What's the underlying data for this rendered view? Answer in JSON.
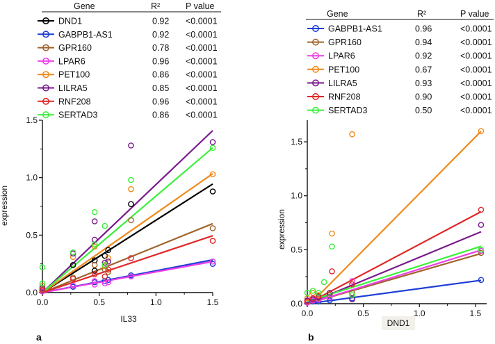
{
  "panels": [
    {
      "id": "a",
      "label": "a",
      "header": {
        "gene": "Gene",
        "r2": "R²",
        "pvalue": "P value"
      },
      "rows": [
        {
          "gene": "DND1",
          "r2": "0.92",
          "pvalue": "<0.0001",
          "color": "#000000"
        },
        {
          "gene": "GABPB1-AS1",
          "r2": "0.92",
          "pvalue": "<0.0001",
          "color": "#1f3fd6"
        },
        {
          "gene": "GPR160",
          "r2": "0.78",
          "pvalue": "<0.0001",
          "color": "#a0642d"
        },
        {
          "gene": "LPAR6",
          "r2": "0.96",
          "pvalue": "<0.0001",
          "color": "#ee3ee8"
        },
        {
          "gene": "PET100",
          "r2": "0.86",
          "pvalue": "<0.0001",
          "color": "#f08a1c"
        },
        {
          "gene": "LILRA5",
          "r2": "0.85",
          "pvalue": "<0.0001",
          "color": "#7a1a8c"
        },
        {
          "gene": "RNF208",
          "r2": "0.96",
          "pvalue": "<0.0001",
          "color": "#e02828"
        },
        {
          "gene": "SERTAD3",
          "r2": "0.86",
          "pvalue": "<0.0001",
          "color": "#3cf03c"
        }
      ]
    },
    {
      "id": "b",
      "label": "b",
      "header": {
        "gene": "Gene",
        "r2": "R²",
        "pvalue": "P value"
      },
      "rows": [
        {
          "gene": "GABPB1-AS1",
          "r2": "0.96",
          "pvalue": "<0.0001",
          "color": "#1f3fd6"
        },
        {
          "gene": "GPR160",
          "r2": "0.94",
          "pvalue": "<0.0001",
          "color": "#a0642d"
        },
        {
          "gene": "LPAR6",
          "r2": "0.92",
          "pvalue": "<0.0001",
          "color": "#ee3ee8"
        },
        {
          "gene": "PET100",
          "r2": "0.67",
          "pvalue": "<0.0001",
          "color": "#f08a1c"
        },
        {
          "gene": "LILRA5",
          "r2": "0.93",
          "pvalue": "<0.0001",
          "color": "#7a1a8c"
        },
        {
          "gene": "RNF208",
          "r2": "0.90",
          "pvalue": "<0.0001",
          "color": "#e02828"
        },
        {
          "gene": "SERTAD3",
          "r2": "0.50",
          "pvalue": "<0.0001",
          "color": "#3cf03c"
        }
      ]
    }
  ],
  "chart_data": [
    {
      "type": "scatter",
      "panel": "a",
      "xlabel": "IL33",
      "ylabel": "expression",
      "xlim": [
        0,
        1.5
      ],
      "ylim": [
        0,
        1.5
      ],
      "xticks": [
        "0.0",
        "0.5",
        "1.0",
        "1.5"
      ],
      "yticks": [
        "0.0",
        "0.5",
        "1.0",
        "1.5"
      ],
      "series": [
        {
          "name": "DND1",
          "slope": 0.63,
          "intercept": 0.0,
          "color": "#000000",
          "points": [
            [
              0,
              0.02
            ],
            [
              0.27,
              0.24
            ],
            [
              0.46,
              0.28
            ],
            [
              0.46,
              0.19
            ],
            [
              0.55,
              0.32
            ],
            [
              0.58,
              0.37
            ],
            [
              0.78,
              0.77
            ],
            [
              1.5,
              0.88
            ]
          ]
        },
        {
          "name": "GABPB1-AS1",
          "slope": 0.19,
          "intercept": 0.0,
          "color": "#1f3fd6",
          "points": [
            [
              0,
              0.01
            ],
            [
              0.27,
              0.05
            ],
            [
              0.46,
              0.09
            ],
            [
              0.55,
              0.1
            ],
            [
              0.58,
              0.11
            ],
            [
              0.78,
              0.15
            ],
            [
              1.5,
              0.25
            ]
          ]
        },
        {
          "name": "GPR160",
          "slope": 0.4,
          "intercept": 0.0,
          "color": "#a0642d",
          "points": [
            [
              0,
              0.03
            ],
            [
              0.27,
              0.13
            ],
            [
              0.46,
              0.24
            ],
            [
              0.55,
              0.2
            ],
            [
              0.58,
              0.18
            ],
            [
              0.78,
              0.63
            ],
            [
              1.5,
              0.56
            ]
          ]
        },
        {
          "name": "LPAR6",
          "slope": 0.18,
          "intercept": 0.0,
          "color": "#ee3ee8",
          "points": [
            [
              0,
              0.01
            ],
            [
              0.27,
              0.06
            ],
            [
              0.46,
              0.07
            ],
            [
              0.46,
              0.1
            ],
            [
              0.55,
              0.08
            ],
            [
              0.58,
              0.09
            ],
            [
              0.78,
              0.14
            ],
            [
              1.5,
              0.27
            ]
          ]
        },
        {
          "name": "PET100",
          "slope": 0.69,
          "intercept": 0.0,
          "color": "#f08a1c",
          "points": [
            [
              0,
              0.06
            ],
            [
              0.27,
              0.31
            ],
            [
              0.46,
              0.4
            ],
            [
              0.55,
              0.23
            ],
            [
              0.58,
              0.3
            ],
            [
              0.78,
              0.9
            ],
            [
              1.5,
              1.03
            ]
          ]
        },
        {
          "name": "LILRA5",
          "slope": 0.94,
          "intercept": 0.0,
          "color": "#7a1a8c",
          "points": [
            [
              0,
              0.04
            ],
            [
              0.27,
              0.34
            ],
            [
              0.46,
              0.62
            ],
            [
              0.46,
              0.46
            ],
            [
              0.55,
              0.26
            ],
            [
              0.58,
              0.27
            ],
            [
              0.78,
              1.28
            ],
            [
              1.5,
              1.31
            ]
          ]
        },
        {
          "name": "RNF208",
          "slope": 0.33,
          "intercept": 0.0,
          "color": "#e02828",
          "points": [
            [
              0,
              0.02
            ],
            [
              0.27,
              0.12
            ],
            [
              0.46,
              0.16
            ],
            [
              0.55,
              0.14
            ],
            [
              0.58,
              0.2
            ],
            [
              0.78,
              0.3
            ],
            [
              1.5,
              0.45
            ]
          ]
        },
        {
          "name": "SERTAD3",
          "slope": 0.84,
          "intercept": 0.0,
          "color": "#3cf03c",
          "points": [
            [
              0,
              0.22
            ],
            [
              0,
              0.08
            ],
            [
              0.27,
              0.35
            ],
            [
              0.46,
              0.7
            ],
            [
              0.46,
              0.42
            ],
            [
              0.55,
              0.24
            ],
            [
              0.55,
              0.58
            ],
            [
              0.78,
              0.98
            ],
            [
              1.5,
              1.26
            ]
          ]
        }
      ]
    },
    {
      "type": "scatter",
      "panel": "b",
      "xlabel": "DND1",
      "ylabel": "expression",
      "xlim": [
        0,
        1.6
      ],
      "ylim": [
        0,
        1.7
      ],
      "xticks": [
        "0.0",
        "0.5",
        "1.0",
        "1.5"
      ],
      "yticks": [
        "0.0",
        "0.5",
        "1.0",
        "1.5"
      ],
      "series": [
        {
          "name": "GABPB1-AS1",
          "slope": 0.14,
          "intercept": 0.0,
          "color": "#1f3fd6",
          "points": [
            [
              0,
              0.01
            ],
            [
              0.05,
              0.02
            ],
            [
              0.1,
              0.02
            ],
            [
              0.2,
              0.03
            ],
            [
              0.4,
              0.05
            ],
            [
              1.55,
              0.22
            ]
          ]
        },
        {
          "name": "GPR160",
          "slope": 0.3,
          "intercept": 0.0,
          "color": "#a0642d",
          "points": [
            [
              0,
              0.02
            ],
            [
              0.05,
              0.03
            ],
            [
              0.1,
              0.05
            ],
            [
              0.2,
              0.08
            ],
            [
              0.4,
              0.1
            ],
            [
              1.55,
              0.47
            ]
          ]
        },
        {
          "name": "LPAR6",
          "slope": 0.32,
          "intercept": 0.0,
          "color": "#ee3ee8",
          "points": [
            [
              0,
              0.01
            ],
            [
              0.05,
              0.03
            ],
            [
              0.1,
              0.04
            ],
            [
              0.2,
              0.06
            ],
            [
              0.4,
              0.21
            ],
            [
              1.55,
              0.49
            ]
          ]
        },
        {
          "name": "PET100",
          "slope": 1.05,
          "intercept": -0.03,
          "color": "#f08a1c",
          "points": [
            [
              0,
              0.05
            ],
            [
              0.05,
              0.1
            ],
            [
              0.1,
              0.08
            ],
            [
              0.22,
              0.65
            ],
            [
              0.4,
              1.57
            ],
            [
              1.55,
              1.6
            ]
          ]
        },
        {
          "name": "LILRA5",
          "slope": 0.43,
          "intercept": 0.0,
          "color": "#7a1a8c",
          "points": [
            [
              0,
              0.03
            ],
            [
              0.05,
              0.04
            ],
            [
              0.1,
              0.06
            ],
            [
              0.2,
              0.1
            ],
            [
              0.4,
              0.04
            ],
            [
              1.55,
              0.73
            ]
          ]
        },
        {
          "name": "RNF208",
          "slope": 0.55,
          "intercept": 0.0,
          "color": "#e02828",
          "points": [
            [
              0,
              0.02
            ],
            [
              0.05,
              0.05
            ],
            [
              0.1,
              0.07
            ],
            [
              0.22,
              0.3
            ],
            [
              0.4,
              0.18
            ],
            [
              1.55,
              0.87
            ]
          ]
        },
        {
          "name": "SERTAD3",
          "slope": 0.33,
          "intercept": 0.02,
          "color": "#3cf03c",
          "points": [
            [
              0,
              0.1
            ],
            [
              0.05,
              0.12
            ],
            [
              0.1,
              0.1
            ],
            [
              0.15,
              0.2
            ],
            [
              0.22,
              0.53
            ],
            [
              0.4,
              0.08
            ],
            [
              1.55,
              0.5
            ]
          ]
        }
      ]
    }
  ]
}
